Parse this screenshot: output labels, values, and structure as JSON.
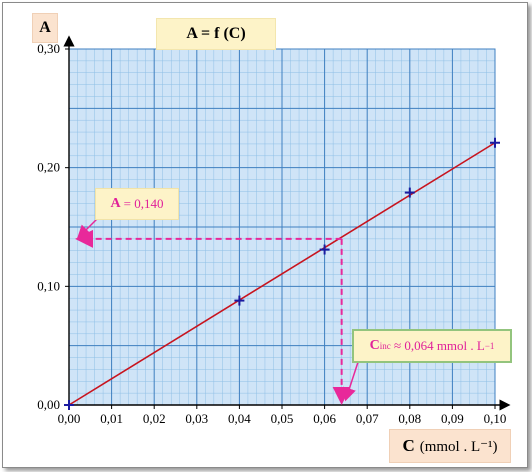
{
  "title": "A = f (C)",
  "ylabel": "A",
  "xlabel": {
    "var": "C",
    "unit": "(mmol . L⁻¹)"
  },
  "annotations": {
    "absorbance": {
      "var": "A",
      "text": "= 0,140"
    },
    "concentration": {
      "var": "C",
      "sub": "inc",
      "text": "≈ 0,064 mmol . L",
      "sup": "−1"
    }
  },
  "colors": {
    "grid_bg": "#cfe4f7",
    "minor_grid": "#8fbfe6",
    "major_grid": "#3f7fc0",
    "fit_line": "#c8141e",
    "markers": "#1a1aa0",
    "guide_lines": "#e8289a",
    "axis": "#000000"
  },
  "chart_data": {
    "type": "scatter",
    "title": "A = f (C)",
    "xlabel": "C (mmol . L⁻¹)",
    "ylabel": "A",
    "xlim": [
      0,
      0.1
    ],
    "ylim": [
      0,
      0.3
    ],
    "grid": true,
    "x_ticks": [
      "0,00",
      "0,01",
      "0,02",
      "0,03",
      "0,04",
      "0,05",
      "0,06",
      "0,07",
      "0,08",
      "0,09",
      "0,10"
    ],
    "y_ticks": [
      "0,00",
      "0,10",
      "0,20",
      "0,30"
    ],
    "x_tick_values": [
      0,
      0.01,
      0.02,
      0.03,
      0.04,
      0.05,
      0.06,
      0.07,
      0.08,
      0.09,
      0.1
    ],
    "y_tick_values": [
      0,
      0.1,
      0.2,
      0.3
    ],
    "points": [
      {
        "x": 0.0,
        "y": 0.0
      },
      {
        "x": 0.04,
        "y": 0.088
      },
      {
        "x": 0.06,
        "y": 0.131
      },
      {
        "x": 0.08,
        "y": 0.179
      },
      {
        "x": 0.1,
        "y": 0.221
      }
    ],
    "fit_line": {
      "from": [
        0.0,
        0.0
      ],
      "to": [
        0.1,
        0.221
      ]
    },
    "reading": {
      "x": 0.064,
      "y": 0.14
    }
  }
}
